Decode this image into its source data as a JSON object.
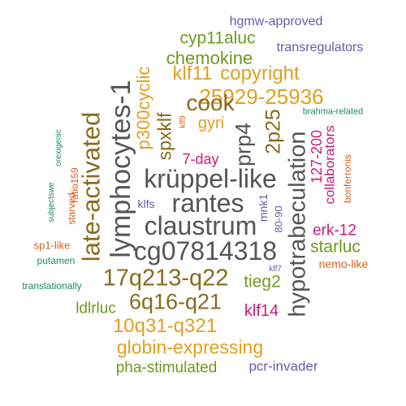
{
  "colors": {
    "gray": "#555555",
    "brown": "#8a6a1e",
    "gold": "#e0a020",
    "olive": "#6e9a1e",
    "purple": "#6a5aa8",
    "magenta": "#d01878",
    "teal": "#1a8a6a",
    "orange": "#d8601a"
  },
  "words": [
    {
      "text": "hgmw-approved"
    },
    {
      "text": "cyp11aluc"
    },
    {
      "text": "transregulators"
    },
    {
      "text": "chemokine"
    },
    {
      "text": "klf11"
    },
    {
      "text": "copyright"
    },
    {
      "text": "25929-25936"
    },
    {
      "text": "brahma-related"
    },
    {
      "text": "gyri"
    },
    {
      "text": "cook"
    },
    {
      "text": "klf9"
    },
    {
      "text": "7-day"
    },
    {
      "text": "krüppel-like"
    },
    {
      "text": "rantes"
    },
    {
      "text": "claustrum"
    },
    {
      "text": "cg07814318"
    },
    {
      "text": "17q213-q22"
    },
    {
      "text": "6q16-q21"
    },
    {
      "text": "10q31-q321"
    },
    {
      "text": "globin-expressing"
    },
    {
      "text": "pha-stimulated"
    },
    {
      "text": "pcr-invader"
    },
    {
      "text": "klfs"
    },
    {
      "text": "erk-12"
    },
    {
      "text": "starluc"
    },
    {
      "text": "nemo-like"
    },
    {
      "text": "tieg2"
    },
    {
      "text": "klf14"
    },
    {
      "text": "ldlrluc"
    },
    {
      "text": "translationally"
    },
    {
      "text": "putamen"
    },
    {
      "text": "sp1-like"
    },
    {
      "text": "klf7"
    },
    {
      "text": "lymphocytes-1"
    },
    {
      "text": "late-activated"
    },
    {
      "text": "p300cyclic"
    },
    {
      "text": "spxklf"
    },
    {
      "text": "prp4"
    },
    {
      "text": "2p25"
    },
    {
      "text": "hypotrabeculation"
    },
    {
      "text": "127-200"
    },
    {
      "text": "collaborators"
    },
    {
      "text": "bonferronis"
    },
    {
      "text": "mnk1"
    },
    {
      "text": "80-90"
    },
    {
      "text": "ratio159"
    },
    {
      "text": "starved"
    },
    {
      "text": "orexigenic"
    },
    {
      "text": "subjectswe"
    }
  ]
}
